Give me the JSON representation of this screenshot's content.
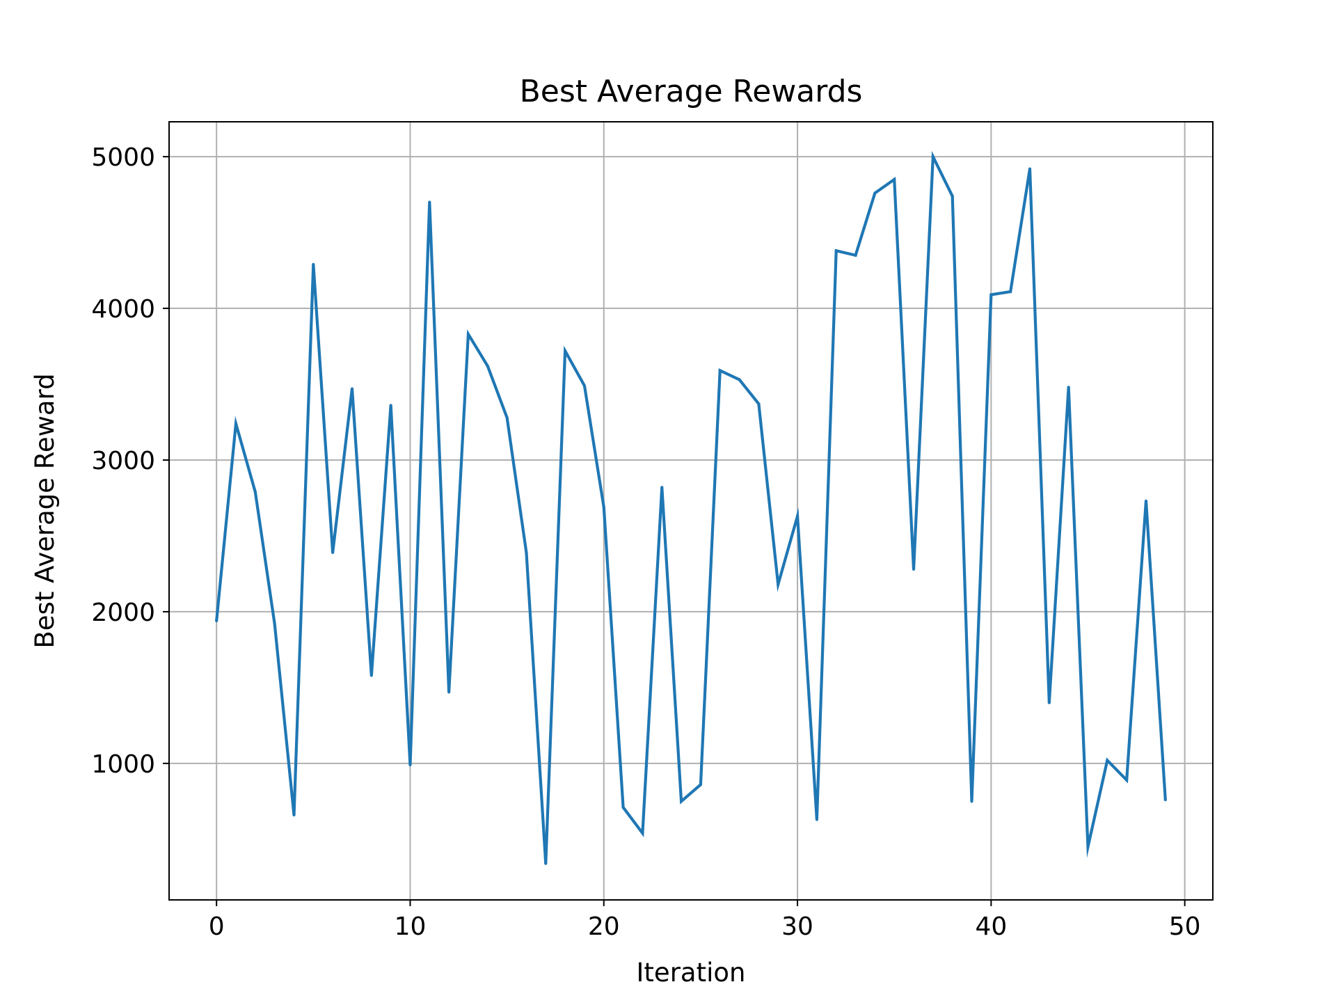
{
  "chart_data": {
    "type": "line",
    "title": "Best Average Rewards",
    "xlabel": "Iteration",
    "ylabel": "Best Average Reward",
    "xlim": [
      -2.45,
      51.45
    ],
    "ylim": [
      100,
      5230
    ],
    "grid": true,
    "legend": "none",
    "line_color": "#1f77b4",
    "grid_color": "#b0b0b0",
    "x_ticks": [
      0,
      10,
      20,
      30,
      40,
      50
    ],
    "y_ticks": [
      1000,
      2000,
      3000,
      4000,
      5000
    ],
    "x_tick_labels": [
      "0",
      "10",
      "20",
      "30",
      "40",
      "50"
    ],
    "y_tick_labels": [
      "1000",
      "2000",
      "3000",
      "4000",
      "5000"
    ],
    "series": [
      {
        "x": [
          0,
          1,
          2,
          3,
          4,
          5,
          6,
          7,
          8,
          9,
          10,
          11,
          12,
          13,
          14,
          15,
          16,
          17,
          18,
          19,
          20,
          21,
          22,
          23,
          24,
          25,
          26,
          27,
          28,
          29,
          30,
          31,
          32,
          33,
          34,
          35,
          36,
          37,
          38,
          39,
          40,
          41,
          42,
          43,
          44,
          45,
          46,
          47,
          48,
          49
        ],
        "values": [
          1940,
          3240,
          2790,
          1920,
          660,
          4290,
          2390,
          3470,
          1580,
          3360,
          990,
          4700,
          1470,
          3830,
          3620,
          3280,
          2390,
          340,
          3720,
          3490,
          2690,
          710,
          540,
          2820,
          750,
          860,
          3590,
          3530,
          3370,
          2180,
          2630,
          630,
          4380,
          4350,
          4760,
          4850,
          2280,
          5000,
          4740,
          750,
          4090,
          4110,
          4920,
          1400,
          3480,
          450,
          1020,
          890,
          2730,
          760
        ]
      }
    ]
  }
}
